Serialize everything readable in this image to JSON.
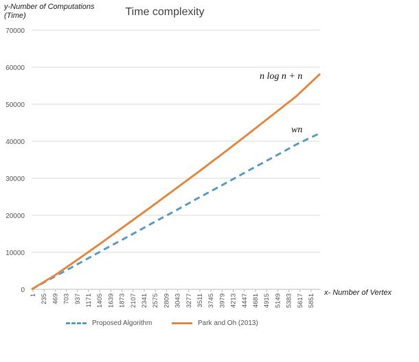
{
  "chart_data": {
    "type": "line",
    "title": "Time complexity",
    "ylabel": "y-Number of Computations (Time)",
    "xlabel": "x- Number of Vertex",
    "ylim": [
      0,
      70000
    ],
    "yticks": [
      0,
      10000,
      20000,
      30000,
      40000,
      50000,
      60000,
      70000
    ],
    "ytick_labels": [
      "0",
      "10000",
      "20000",
      "30000",
      "40000",
      "50000",
      "60000",
      "70000"
    ],
    "xlim": [
      1,
      6000
    ],
    "xtick_labels": [
      "1",
      "235",
      "469",
      "703",
      "937",
      "1171",
      "1405",
      "1639",
      "1873",
      "2107",
      "2341",
      "2575",
      "2809",
      "3043",
      "3277",
      "3511",
      "3745",
      "3979",
      "4213",
      "4447",
      "4681",
      "4915",
      "5149",
      "5383",
      "5617",
      "5851"
    ],
    "grid": true,
    "legend_position": "bottom",
    "series": [
      {
        "name": "Proposed Algorithm",
        "style": "dashed",
        "color": "#5a9dc6",
        "x": [
          1,
          500,
          1000,
          1500,
          2000,
          2500,
          3000,
          3500,
          4000,
          4500,
          5000,
          5500,
          6000
        ],
        "values": [
          0,
          3600,
          7100,
          10700,
          14200,
          17800,
          21300,
          24900,
          28400,
          32000,
          35500,
          39100,
          42200
        ]
      },
      {
        "name": "Park and Oh (2013)",
        "style": "solid",
        "color": "#e6893f",
        "x": [
          1,
          500,
          1000,
          1500,
          2000,
          2500,
          3000,
          3500,
          4000,
          4500,
          5000,
          5500,
          6000
        ],
        "values": [
          0,
          3900,
          8400,
          13000,
          17700,
          22400,
          27200,
          32000,
          36900,
          41900,
          47000,
          52100,
          58200
        ]
      }
    ],
    "annotations": [
      "n log n + n",
      "wn"
    ]
  }
}
